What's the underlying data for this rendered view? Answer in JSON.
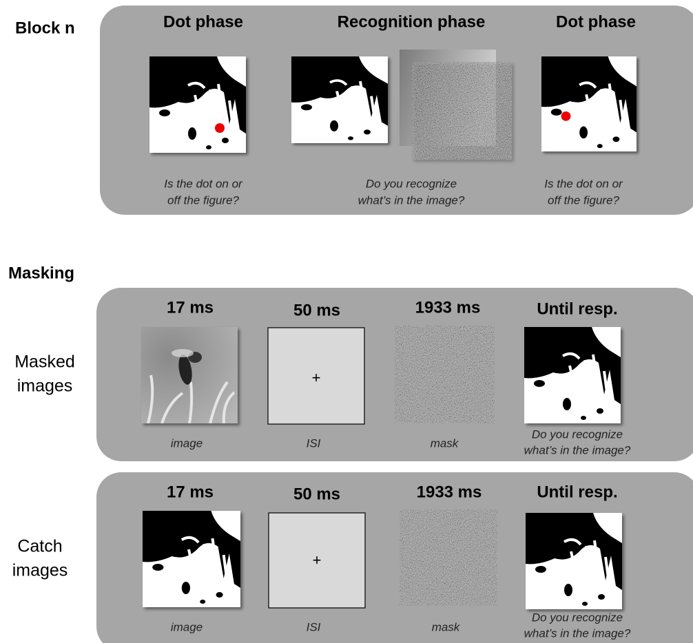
{
  "block": {
    "label": "Block n",
    "panels": [
      {
        "title": "Dot phase",
        "caption": [
          "Is the dot on or",
          "off the figure?"
        ]
      },
      {
        "title": "Recognition phase",
        "caption": [
          "Do you recognize",
          "what’s in the image?"
        ]
      },
      {
        "title": "Dot phase",
        "caption": [
          "Is the dot on or",
          "off the figure?"
        ]
      }
    ]
  },
  "masking": {
    "label": "Masking",
    "rows": [
      {
        "label": [
          "Masked",
          "images"
        ],
        "steps": [
          {
            "duration": "17 ms",
            "caption": [
              "image"
            ]
          },
          {
            "duration": "50 ms",
            "symbol": "+",
            "caption": [
              "ISI"
            ]
          },
          {
            "duration": "1933 ms",
            "caption": [
              "mask"
            ]
          },
          {
            "duration": "Until resp.",
            "caption": [
              "Do you recognize",
              "what’s in the image?"
            ]
          }
        ]
      },
      {
        "label": [
          "Catch",
          "images"
        ],
        "steps": [
          {
            "duration": "17 ms",
            "caption": [
              "image"
            ]
          },
          {
            "duration": "50 ms",
            "symbol": "+",
            "caption": [
              "ISI"
            ]
          },
          {
            "duration": "1933 ms",
            "caption": [
              "mask"
            ]
          },
          {
            "duration": "Until resp.",
            "caption": [
              "Do you recognize",
              "what’s in the image?"
            ]
          }
        ]
      }
    ]
  }
}
